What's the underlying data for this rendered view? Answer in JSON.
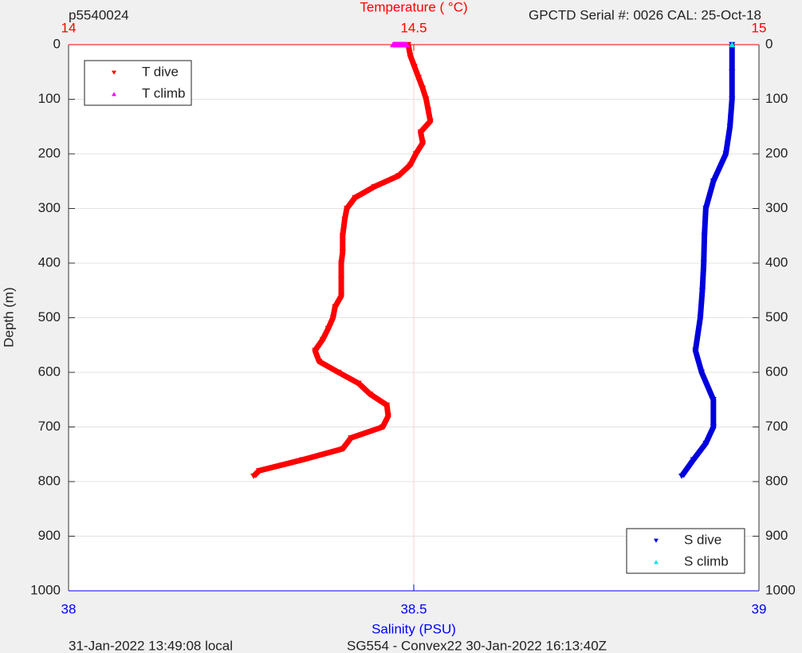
{
  "chart_data": {
    "type": "scatter",
    "title": "p5540024",
    "subtitle": "GPCTD Serial #: 0026 CAL: 25-Oct-18",
    "x2_label": "Temperature (    °C)",
    "x_label": "Salinity (PSU)",
    "y_label": "Depth (m)",
    "footer_left": "31-Jan-2022 13:49:08 local",
    "footer_right": "SG554 - Convex22 30-Jan-2022 16:13:40Z",
    "xlim": [
      38,
      39
    ],
    "xticks": [
      38,
      38.5,
      39
    ],
    "x2lim": [
      14,
      15
    ],
    "x2ticks": [
      14,
      14.5,
      15
    ],
    "ylim": [
      0,
      1000
    ],
    "y_reversed": true,
    "yticks": [
      0,
      100,
      200,
      300,
      400,
      500,
      600,
      700,
      800,
      900,
      1000
    ],
    "grid": true,
    "legends": [
      {
        "loc": "upper left",
        "series": [
          0,
          1
        ]
      },
      {
        "loc": "lower right",
        "series": [
          2,
          3
        ]
      }
    ],
    "series": [
      {
        "name": "T dive",
        "color": "#ff0000",
        "marker": "down",
        "axis": "x2",
        "depth": [
          0,
          20,
          40,
          60,
          80,
          100,
          120,
          140,
          160,
          180,
          200,
          220,
          240,
          260,
          280,
          300,
          320,
          350,
          380,
          400,
          430,
          460,
          480,
          500,
          520,
          540,
          560,
          580,
          600,
          620,
          640,
          660,
          680,
          700,
          720,
          740,
          760,
          780,
          790
        ],
        "values": [
          14.492,
          14.495,
          14.501,
          14.507,
          14.513,
          14.518,
          14.521,
          14.524,
          14.51,
          14.513,
          14.503,
          14.495,
          14.478,
          14.443,
          14.415,
          14.403,
          14.4,
          14.397,
          14.397,
          14.395,
          14.395,
          14.395,
          14.386,
          14.383,
          14.376,
          14.368,
          14.357,
          14.363,
          14.391,
          14.42,
          14.437,
          14.461,
          14.463,
          14.455,
          14.409,
          14.397,
          14.339,
          14.276,
          14.268
        ]
      },
      {
        "name": "T climb",
        "color": "#ff00ff",
        "marker": "up",
        "axis": "x2",
        "depth": [
          0,
          0,
          0
        ],
        "values": [
          14.47,
          14.482,
          14.49
        ]
      },
      {
        "name": "S dive",
        "color": "#0000dd",
        "marker": "down",
        "axis": "x",
        "depth": [
          0,
          50,
          100,
          150,
          200,
          250,
          300,
          350,
          400,
          450,
          500,
          560,
          600,
          650,
          700,
          730,
          760,
          790
        ],
        "values": [
          38.961,
          38.961,
          38.961,
          38.958,
          38.952,
          38.934,
          38.923,
          38.921,
          38.92,
          38.918,
          38.915,
          38.908,
          38.917,
          38.934,
          38.934,
          38.923,
          38.905,
          38.888
        ]
      },
      {
        "name": "S climb",
        "color": "#00e5e5",
        "marker": "up",
        "axis": "x",
        "depth": [
          0
        ],
        "values": [
          38.961
        ]
      }
    ]
  }
}
